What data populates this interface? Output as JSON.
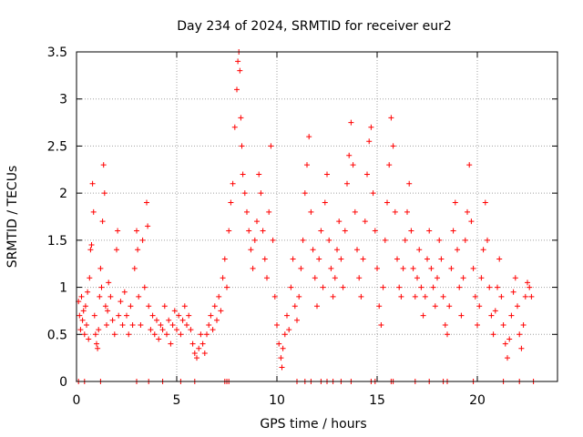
{
  "chart_data": {
    "type": "scatter",
    "title": "Day 234 of 2024, SRMTID for receiver eur2",
    "xlabel": "GPS time / hours",
    "ylabel": "SRMTID / TECUs",
    "xlim": [
      0,
      24
    ],
    "ylim": [
      0,
      3.5
    ],
    "xticks": [
      0,
      5,
      10,
      15,
      20
    ],
    "xtick_labels": [
      "0",
      "5",
      "10",
      "15",
      "20"
    ],
    "yticks": [
      0,
      0.5,
      1,
      1.5,
      2,
      2.5,
      3,
      3.5
    ],
    "ytick_labels": [
      "0",
      "0.5",
      "1",
      "1.5",
      "2",
      "2.5",
      "3",
      "3.5"
    ],
    "grid": true,
    "marker": "plus",
    "color": "#ff0000",
    "series": [
      {
        "name": "eur2",
        "points": [
          [
            0.1,
            0.85
          ],
          [
            0.15,
            0.7
          ],
          [
            0.2,
            0.55
          ],
          [
            0.25,
            0.9
          ],
          [
            0.3,
            0.65
          ],
          [
            0.35,
            0.75
          ],
          [
            0.4,
            0.5
          ],
          [
            0.45,
            0.8
          ],
          [
            0.5,
            0.6
          ],
          [
            0.55,
            0.95
          ],
          [
            0.6,
            0.45
          ],
          [
            0.65,
            1.1
          ],
          [
            0.7,
            1.4
          ],
          [
            0.75,
            1.45
          ],
          [
            0.8,
            2.1
          ],
          [
            0.85,
            1.8
          ],
          [
            0.9,
            0.7
          ],
          [
            0.95,
            0.5
          ],
          [
            1.0,
            0.4
          ],
          [
            1.05,
            0.35
          ],
          [
            1.1,
            0.55
          ],
          [
            1.15,
            0.9
          ],
          [
            1.2,
            1.2
          ],
          [
            1.25,
            1.0
          ],
          [
            1.3,
            1.7
          ],
          [
            1.35,
            2.3
          ],
          [
            1.4,
            2.0
          ],
          [
            1.45,
            0.8
          ],
          [
            1.5,
            0.6
          ],
          [
            1.55,
            0.75
          ],
          [
            1.6,
            1.05
          ],
          [
            1.7,
            0.9
          ],
          [
            1.8,
            0.65
          ],
          [
            1.9,
            0.5
          ],
          [
            2.0,
            1.4
          ],
          [
            2.05,
            1.6
          ],
          [
            2.1,
            0.7
          ],
          [
            2.2,
            0.85
          ],
          [
            2.3,
            0.6
          ],
          [
            2.4,
            0.95
          ],
          [
            2.5,
            0.7
          ],
          [
            2.6,
            0.5
          ],
          [
            2.7,
            0.8
          ],
          [
            2.8,
            0.6
          ],
          [
            2.9,
            1.2
          ],
          [
            3.0,
            1.6
          ],
          [
            3.05,
            1.4
          ],
          [
            3.1,
            0.9
          ],
          [
            3.2,
            0.6
          ],
          [
            3.3,
            1.5
          ],
          [
            3.4,
            1.0
          ],
          [
            3.5,
            1.9
          ],
          [
            3.55,
            1.65
          ],
          [
            3.6,
            0.8
          ],
          [
            3.7,
            0.55
          ],
          [
            3.8,
            0.7
          ],
          [
            3.9,
            0.5
          ],
          [
            4.0,
            0.65
          ],
          [
            4.1,
            0.45
          ],
          [
            4.2,
            0.6
          ],
          [
            4.3,
            0.55
          ],
          [
            4.4,
            0.8
          ],
          [
            4.5,
            0.5
          ],
          [
            4.6,
            0.65
          ],
          [
            4.7,
            0.4
          ],
          [
            4.8,
            0.6
          ],
          [
            4.9,
            0.75
          ],
          [
            5.0,
            0.55
          ],
          [
            5.1,
            0.7
          ],
          [
            5.2,
            0.5
          ],
          [
            5.3,
            0.65
          ],
          [
            5.4,
            0.8
          ],
          [
            5.5,
            0.6
          ],
          [
            5.6,
            0.7
          ],
          [
            5.7,
            0.55
          ],
          [
            5.8,
            0.4
          ],
          [
            5.9,
            0.3
          ],
          [
            6.0,
            0.25
          ],
          [
            6.1,
            0.35
          ],
          [
            6.2,
            0.5
          ],
          [
            6.3,
            0.4
          ],
          [
            6.4,
            0.3
          ],
          [
            6.5,
            0.5
          ],
          [
            6.6,
            0.6
          ],
          [
            6.7,
            0.7
          ],
          [
            6.8,
            0.55
          ],
          [
            6.9,
            0.8
          ],
          [
            7.0,
            0.65
          ],
          [
            7.1,
            0.9
          ],
          [
            7.2,
            0.75
          ],
          [
            7.3,
            1.1
          ],
          [
            7.4,
            1.3
          ],
          [
            7.5,
            1.0
          ],
          [
            7.6,
            1.6
          ],
          [
            7.7,
            1.9
          ],
          [
            7.8,
            2.1
          ],
          [
            7.9,
            2.7
          ],
          [
            8.0,
            3.1
          ],
          [
            8.05,
            3.4
          ],
          [
            8.1,
            3.5
          ],
          [
            8.15,
            3.3
          ],
          [
            8.2,
            2.8
          ],
          [
            8.25,
            2.5
          ],
          [
            8.3,
            2.2
          ],
          [
            8.4,
            2.0
          ],
          [
            8.5,
            1.8
          ],
          [
            8.6,
            1.6
          ],
          [
            8.7,
            1.4
          ],
          [
            8.8,
            1.2
          ],
          [
            8.9,
            1.5
          ],
          [
            9.0,
            1.7
          ],
          [
            9.1,
            2.2
          ],
          [
            9.2,
            2.0
          ],
          [
            9.3,
            1.6
          ],
          [
            9.4,
            1.3
          ],
          [
            9.5,
            1.1
          ],
          [
            9.6,
            1.8
          ],
          [
            9.7,
            2.5
          ],
          [
            9.8,
            1.5
          ],
          [
            9.9,
            0.9
          ],
          [
            10.0,
            0.6
          ],
          [
            10.1,
            0.4
          ],
          [
            10.2,
            0.25
          ],
          [
            10.25,
            0.15
          ],
          [
            10.3,
            0.35
          ],
          [
            10.4,
            0.5
          ],
          [
            10.5,
            0.7
          ],
          [
            10.6,
            0.55
          ],
          [
            10.7,
            1.0
          ],
          [
            10.8,
            1.3
          ],
          [
            10.9,
            0.8
          ],
          [
            11.0,
            0.65
          ],
          [
            11.1,
            0.9
          ],
          [
            11.2,
            1.2
          ],
          [
            11.3,
            1.5
          ],
          [
            11.4,
            2.0
          ],
          [
            11.5,
            2.3
          ],
          [
            11.6,
            2.6
          ],
          [
            11.7,
            1.8
          ],
          [
            11.8,
            1.4
          ],
          [
            11.9,
            1.1
          ],
          [
            12.0,
            0.8
          ],
          [
            12.1,
            1.3
          ],
          [
            12.2,
            1.6
          ],
          [
            12.3,
            1.0
          ],
          [
            12.4,
            1.9
          ],
          [
            12.5,
            2.2
          ],
          [
            12.6,
            1.5
          ],
          [
            12.7,
            1.2
          ],
          [
            12.8,
            0.9
          ],
          [
            12.9,
            1.1
          ],
          [
            13.0,
            1.4
          ],
          [
            13.1,
            1.7
          ],
          [
            13.2,
            1.3
          ],
          [
            13.3,
            1.0
          ],
          [
            13.4,
            1.6
          ],
          [
            13.5,
            2.1
          ],
          [
            13.6,
            2.4
          ],
          [
            13.7,
            2.75
          ],
          [
            13.8,
            2.3
          ],
          [
            13.9,
            1.8
          ],
          [
            14.0,
            1.4
          ],
          [
            14.1,
            1.1
          ],
          [
            14.2,
            0.9
          ],
          [
            14.3,
            1.3
          ],
          [
            14.4,
            1.7
          ],
          [
            14.5,
            2.2
          ],
          [
            14.6,
            2.55
          ],
          [
            14.7,
            2.7
          ],
          [
            14.8,
            2.0
          ],
          [
            14.9,
            1.6
          ],
          [
            15.0,
            1.2
          ],
          [
            15.1,
            0.8
          ],
          [
            15.2,
            0.6
          ],
          [
            15.3,
            1.0
          ],
          [
            15.4,
            1.5
          ],
          [
            15.5,
            1.9
          ],
          [
            15.6,
            2.3
          ],
          [
            15.7,
            2.8
          ],
          [
            15.8,
            2.5
          ],
          [
            15.9,
            1.8
          ],
          [
            16.0,
            1.3
          ],
          [
            16.1,
            1.0
          ],
          [
            16.2,
            0.9
          ],
          [
            16.3,
            1.2
          ],
          [
            16.4,
            1.5
          ],
          [
            16.5,
            1.8
          ],
          [
            16.6,
            2.1
          ],
          [
            16.7,
            1.6
          ],
          [
            16.8,
            1.2
          ],
          [
            16.9,
            0.9
          ],
          [
            17.0,
            1.1
          ],
          [
            17.1,
            1.4
          ],
          [
            17.2,
            1.0
          ],
          [
            17.3,
            0.7
          ],
          [
            17.4,
            0.9
          ],
          [
            17.5,
            1.3
          ],
          [
            17.6,
            1.6
          ],
          [
            17.7,
            1.2
          ],
          [
            17.8,
            1.0
          ],
          [
            17.9,
            0.8
          ],
          [
            18.0,
            1.1
          ],
          [
            18.1,
            1.5
          ],
          [
            18.2,
            1.3
          ],
          [
            18.3,
            0.9
          ],
          [
            18.4,
            0.6
          ],
          [
            18.5,
            0.5
          ],
          [
            18.6,
            0.8
          ],
          [
            18.7,
            1.2
          ],
          [
            18.8,
            1.6
          ],
          [
            18.9,
            1.9
          ],
          [
            19.0,
            1.4
          ],
          [
            19.1,
            1.0
          ],
          [
            19.2,
            0.7
          ],
          [
            19.3,
            1.1
          ],
          [
            19.4,
            1.5
          ],
          [
            19.5,
            1.8
          ],
          [
            19.6,
            2.3
          ],
          [
            19.7,
            1.7
          ],
          [
            19.8,
            1.2
          ],
          [
            19.9,
            0.9
          ],
          [
            20.0,
            0.6
          ],
          [
            20.1,
            0.8
          ],
          [
            20.2,
            1.1
          ],
          [
            20.3,
            1.4
          ],
          [
            20.4,
            1.9
          ],
          [
            20.5,
            1.5
          ],
          [
            20.6,
            1.0
          ],
          [
            20.7,
            0.7
          ],
          [
            20.8,
            0.5
          ],
          [
            20.9,
            0.75
          ],
          [
            21.0,
            1.0
          ],
          [
            21.1,
            1.3
          ],
          [
            21.2,
            0.9
          ],
          [
            21.3,
            0.6
          ],
          [
            21.4,
            0.4
          ],
          [
            21.5,
            0.25
          ],
          [
            21.6,
            0.45
          ],
          [
            21.7,
            0.7
          ],
          [
            21.8,
            0.95
          ],
          [
            21.9,
            1.1
          ],
          [
            22.0,
            0.8
          ],
          [
            22.1,
            0.5
          ],
          [
            22.2,
            0.35
          ],
          [
            22.3,
            0.6
          ],
          [
            22.4,
            0.9
          ],
          [
            22.5,
            1.05
          ],
          [
            22.6,
            1.0
          ],
          [
            22.7,
            0.9
          ]
        ],
        "zero_points": [
          0.1,
          0.4,
          1.2,
          3.0,
          3.6,
          4.3,
          5.2,
          5.9,
          7.4,
          7.5,
          7.6,
          11.0,
          11.4,
          11.7,
          12.2,
          12.5,
          12.8,
          13.2,
          13.7,
          14.7,
          14.9,
          15.7,
          15.8,
          16.9,
          17.6,
          18.3,
          18.5,
          19.8,
          21.3,
          22.1,
          22.8
        ]
      }
    ]
  }
}
